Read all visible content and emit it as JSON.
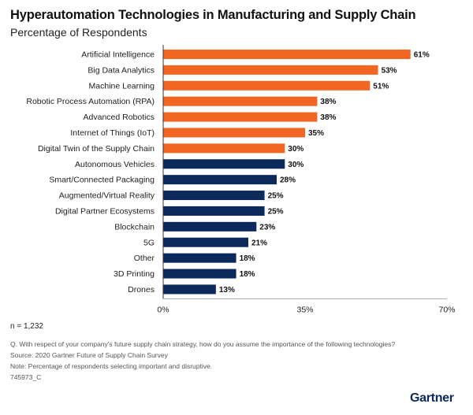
{
  "header": {
    "title": "Hyperautomation Technologies in Manufacturing and Supply Chain",
    "subtitle": "Percentage of Respondents"
  },
  "colors": {
    "highlight": "#f26522",
    "base": "#0b2a5b",
    "axis": "#333333"
  },
  "chart_data": {
    "type": "bar",
    "orientation": "horizontal",
    "categories": [
      "Artificial Intelligence",
      "Big Data Analytics",
      "Machine Learning",
      "Robotic Process Automation (RPA)",
      "Advanced Robotics",
      "Internet of Things (IoT)",
      "Digital Twin of the Supply Chain",
      "Autonomous Vehicles",
      "Smart/Connected Packaging",
      "Augmented/Virtual Reality",
      "Digital Partner Ecosystems",
      "Blockchain",
      "5G",
      "Other",
      "3D Printing",
      "Drones"
    ],
    "values": [
      61,
      53,
      51,
      38,
      38,
      35,
      30,
      30,
      28,
      25,
      25,
      23,
      21,
      18,
      18,
      13
    ],
    "data_labels": [
      "61%",
      "53%",
      "51%",
      "38%",
      "38%",
      "35%",
      "30%",
      "30%",
      "28%",
      "25%",
      "25%",
      "23%",
      "21%",
      "18%",
      "18%",
      "13%"
    ],
    "bar_colors": [
      "#f26522",
      "#f26522",
      "#f26522",
      "#f26522",
      "#f26522",
      "#f26522",
      "#f26522",
      "#0b2a5b",
      "#0b2a5b",
      "#0b2a5b",
      "#0b2a5b",
      "#0b2a5b",
      "#0b2a5b",
      "#0b2a5b",
      "#0b2a5b",
      "#0b2a5b"
    ],
    "xlim": [
      0,
      70
    ],
    "xticks": [
      0,
      35,
      70
    ],
    "xtick_labels": [
      "0%",
      "35%",
      "70%"
    ],
    "grid": false
  },
  "footer": {
    "n": "n = 1,232",
    "question": "Q. With respect of your company's future supply chain strategy, how do you assume the importance of the following technologies?",
    "source": "Source: 2020 Gartner Future of Supply Chain Survey",
    "note": "Note: Percentage of respondents selecting important and disruptive.",
    "id": "745973_C",
    "logo": "Gartner"
  }
}
